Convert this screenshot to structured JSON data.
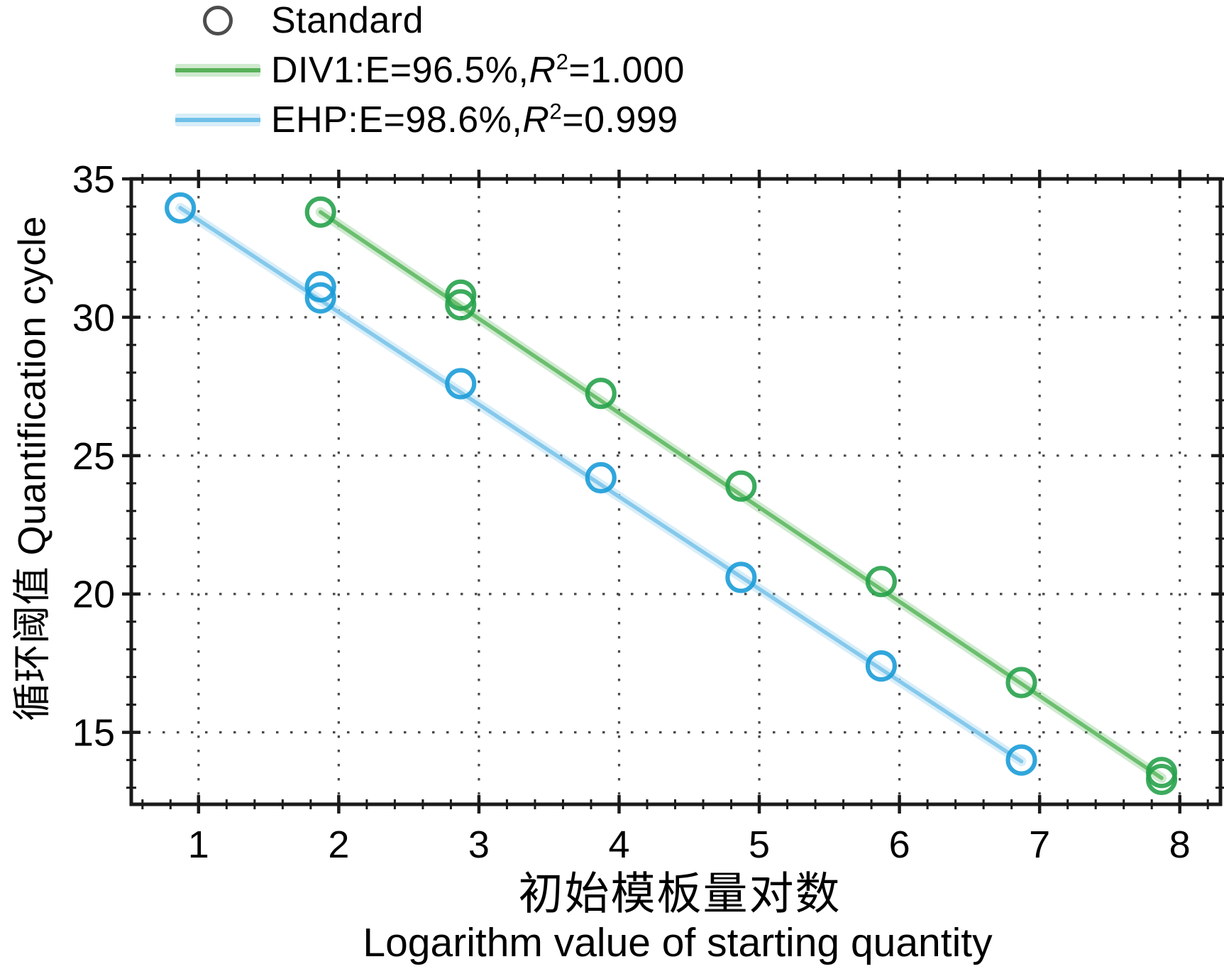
{
  "colors": {
    "background": "#ffffff",
    "axis": "#1a1a1a",
    "grid": "#4a4a4a",
    "text": "#000000"
  },
  "legend": {
    "items": [
      {
        "kind": "marker",
        "label": "Standard",
        "color": "#4d4d4d"
      },
      {
        "kind": "line",
        "series": "DIV1",
        "label_prefix": "DIV1:E=96.5%,",
        "label_r": "R",
        "label_sup": "2",
        "label_suffix": "=1.000",
        "line_color": "#58b158",
        "halo_color": "#bfe3bf"
      },
      {
        "kind": "line",
        "series": "EHP",
        "label_prefix": "EHP:E=98.6%,",
        "label_r": "R",
        "label_sup": "2",
        "label_suffix": "=0.999",
        "line_color": "#6fc0e8",
        "halo_color": "#c9e8f7"
      }
    ]
  },
  "axis_labels": {
    "y": "循环阈值 Quantification cycle",
    "x_cn": "初始模板量对数",
    "x_en": "Logarithm value of starting quantity"
  },
  "chart_data": {
    "type": "scatter",
    "title": "",
    "xlabel": "初始模板量对数 Logarithm value of starting quantity",
    "ylabel": "循环阈值 Quantification cycle",
    "xlim": [
      0.52,
      8.29
    ],
    "ylim": [
      12.4,
      35
    ],
    "x_major_ticks": [
      1,
      2,
      3,
      4,
      5,
      6,
      7,
      8
    ],
    "x_minor_step": 0.2,
    "y_major_ticks": [
      15,
      20,
      25,
      30,
      35
    ],
    "y_minor_step": 1,
    "grid": "dotted lines at major ticks",
    "legend_position": "top-left",
    "series": [
      {
        "name": "EHP",
        "legend_label": "EHP:E=98.6%,R²=0.999",
        "efficiency_pct": 98.6,
        "r_squared": 0.999,
        "marker": "open-circle",
        "marker_color": "#1b9cd8",
        "line_color": "#85c9ec",
        "points": [
          [
            0.87,
            33.95
          ],
          [
            1.87,
            31.1
          ],
          [
            1.87,
            30.7
          ],
          [
            2.87,
            27.6
          ],
          [
            3.87,
            24.2
          ],
          [
            4.87,
            20.6
          ],
          [
            5.87,
            17.4
          ],
          [
            6.87,
            14.0
          ]
        ],
        "fit_line": [
          [
            0.87,
            33.95
          ],
          [
            6.87,
            13.95
          ]
        ]
      },
      {
        "name": "DIV1",
        "legend_label": "DIV1:E=96.5%,R²=1.000",
        "efficiency_pct": 96.5,
        "r_squared": 1.0,
        "marker": "open-circle",
        "marker_color": "#27a24b",
        "line_color": "#6bbf6e",
        "points": [
          [
            1.87,
            33.8
          ],
          [
            2.87,
            30.8
          ],
          [
            2.87,
            30.45
          ],
          [
            3.87,
            27.25
          ],
          [
            4.87,
            23.9
          ],
          [
            5.87,
            20.45
          ],
          [
            6.87,
            16.8
          ],
          [
            7.87,
            13.55
          ],
          [
            7.87,
            13.3
          ]
        ],
        "fit_line": [
          [
            1.87,
            33.8
          ],
          [
            7.87,
            13.35
          ]
        ]
      }
    ]
  }
}
